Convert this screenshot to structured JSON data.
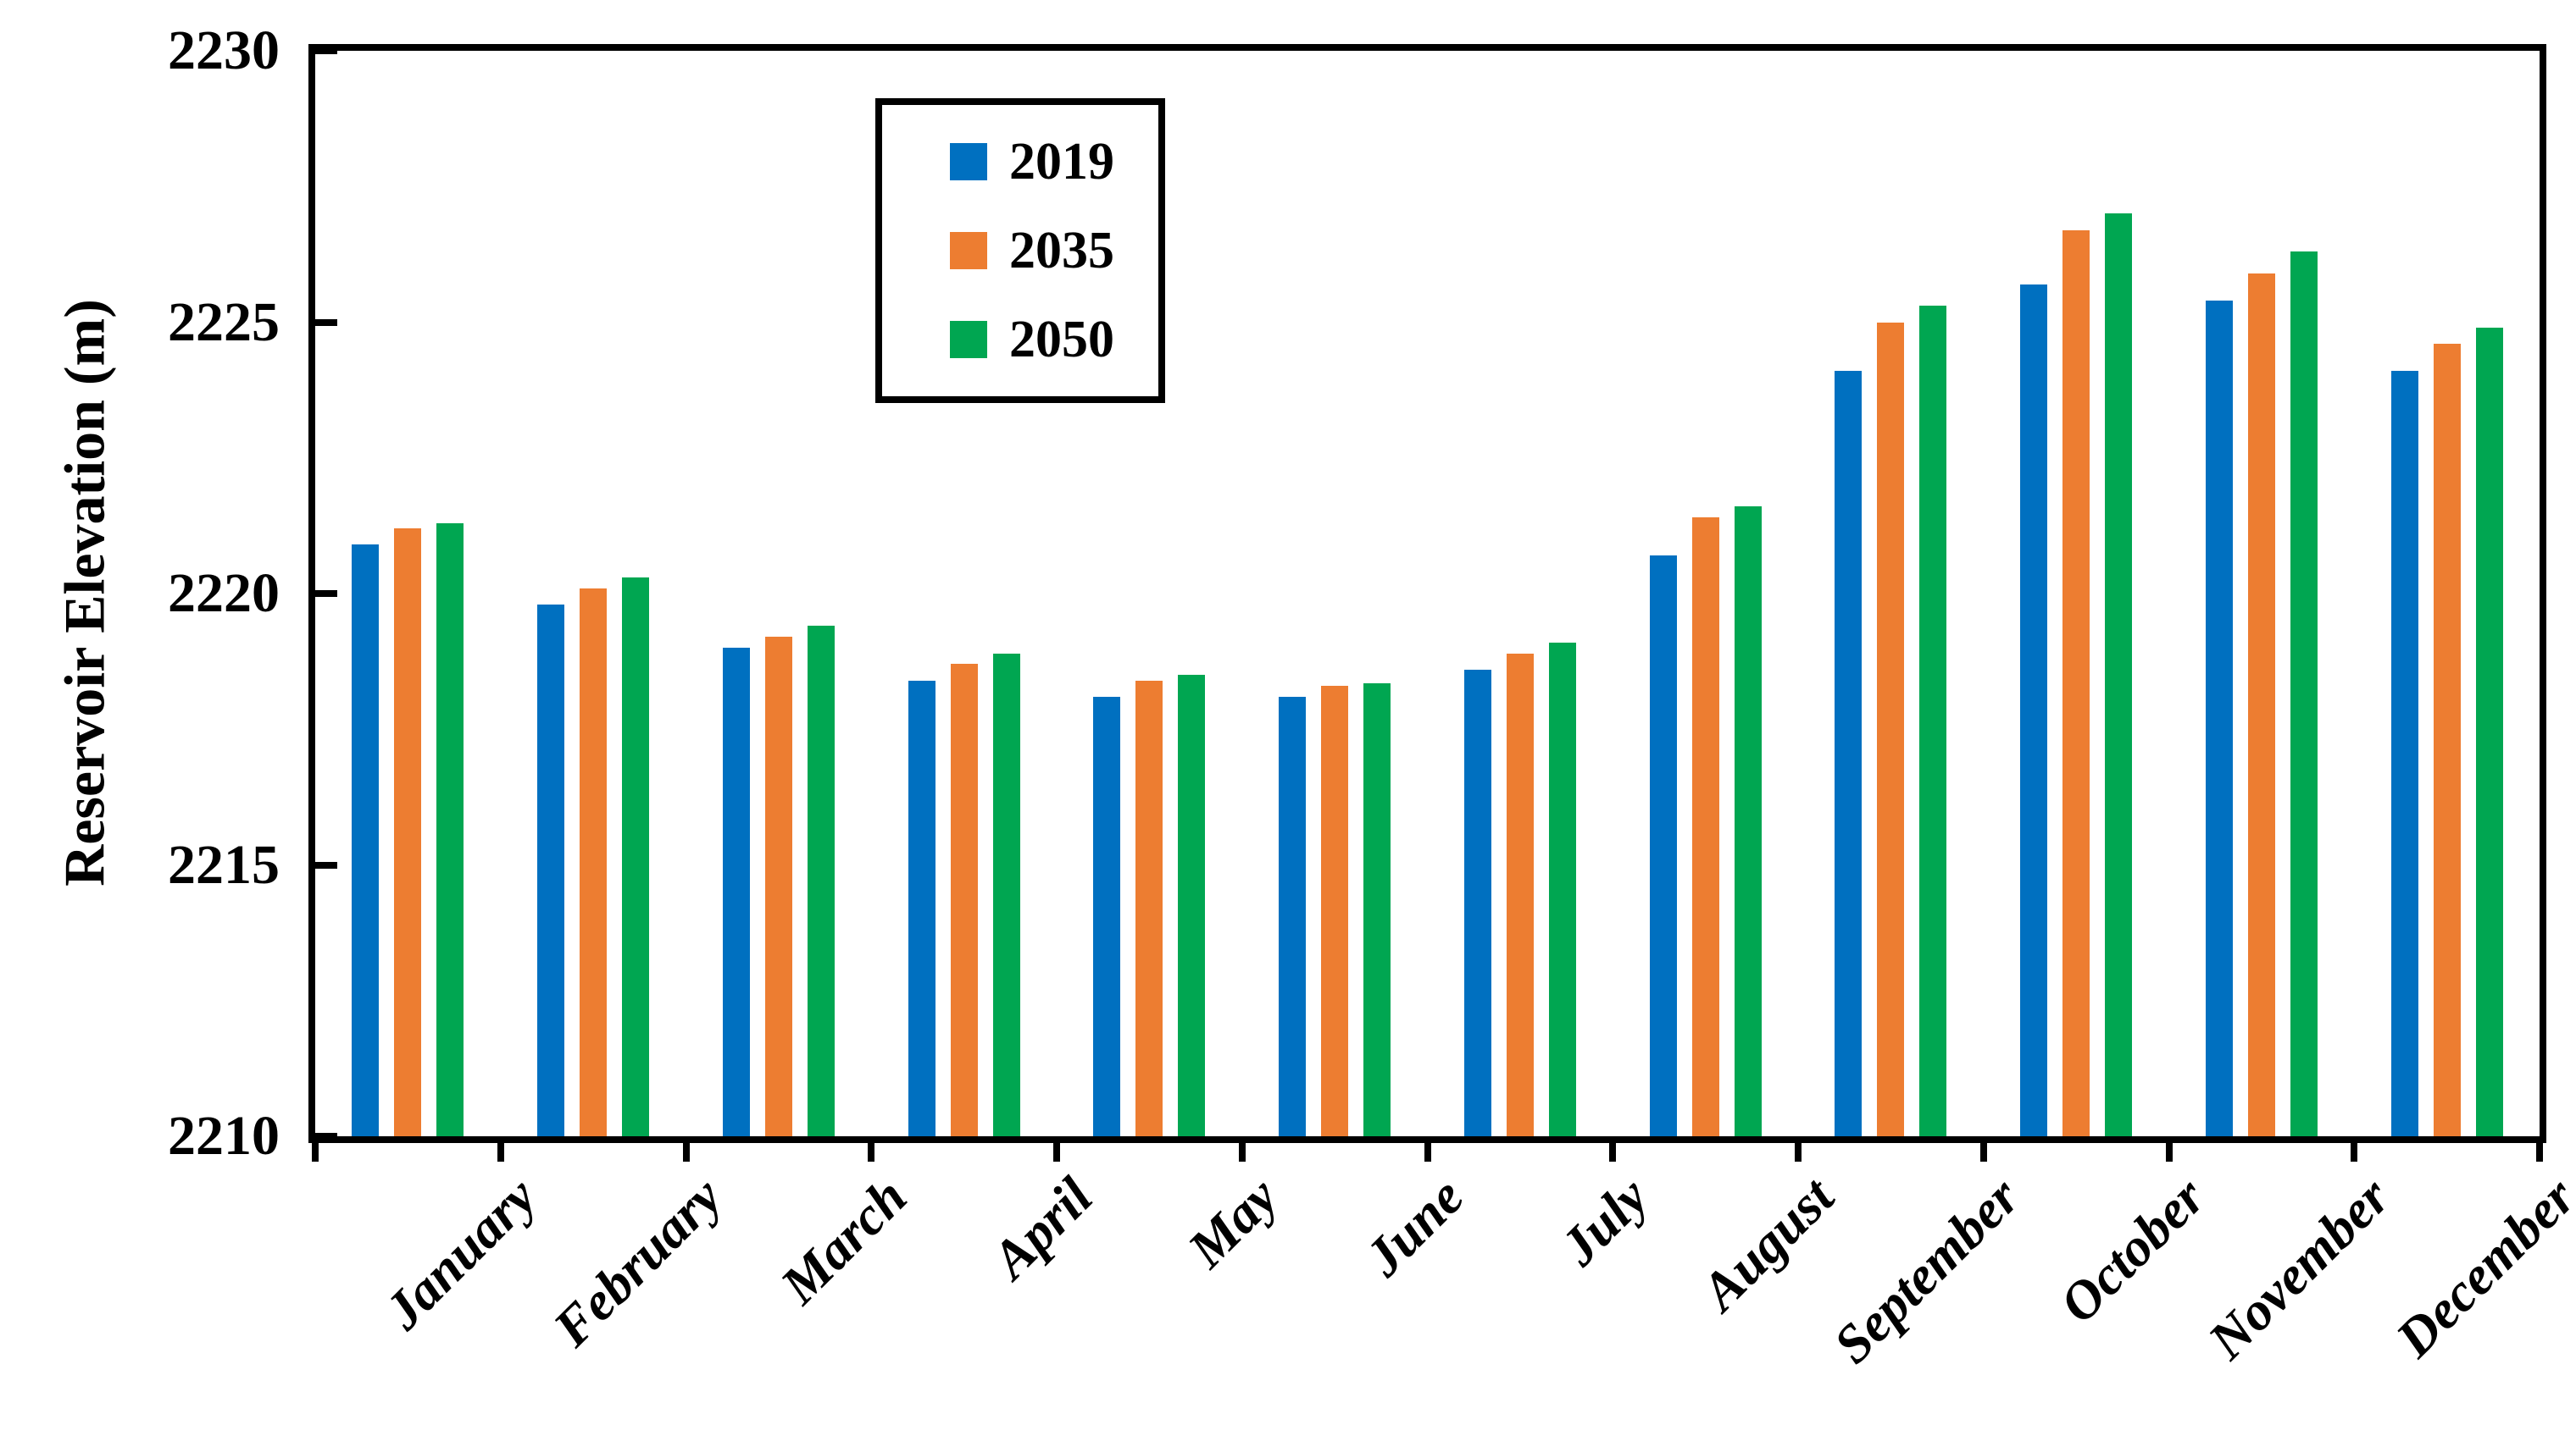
{
  "figure": {
    "background_color": "#ffffff",
    "axis_color": "#000000"
  },
  "y_axis": {
    "title": "Reservoir Elevation (m)",
    "min": 2210,
    "max": 2230,
    "tick_labels": [
      "2230",
      "2225",
      "2220",
      "2215",
      "2210"
    ]
  },
  "chart_data": {
    "type": "bar",
    "title": "",
    "xlabel": "",
    "ylabel": "Reservoir Elevation (m)",
    "ylim": [
      2210,
      2230
    ],
    "yticks": [
      2210,
      2215,
      2220,
      2225,
      2230
    ],
    "grid": false,
    "legend_position": "top-center-inside",
    "categories": [
      "January",
      "February",
      "March",
      "April",
      "May",
      "June",
      "July",
      "August",
      "September",
      "October",
      "November",
      "December"
    ],
    "series": [
      {
        "name": "2019",
        "color": "#0070C0",
        "values": [
          2220.9,
          2219.8,
          2219.0,
          2218.4,
          2218.1,
          2218.1,
          2218.6,
          2220.7,
          2224.1,
          2225.7,
          2225.4,
          2224.1
        ]
      },
      {
        "name": "2035",
        "color": "#ED7D31",
        "values": [
          2221.2,
          2220.1,
          2219.2,
          2218.7,
          2218.4,
          2218.3,
          2218.9,
          2221.4,
          2225.0,
          2226.7,
          2225.9,
          2224.6
        ]
      },
      {
        "name": "2050",
        "color": "#00A651",
        "values": [
          2221.3,
          2220.3,
          2219.4,
          2218.9,
          2218.5,
          2218.35,
          2219.1,
          2221.6,
          2225.3,
          2227.0,
          2226.3,
          2224.9
        ]
      }
    ]
  }
}
